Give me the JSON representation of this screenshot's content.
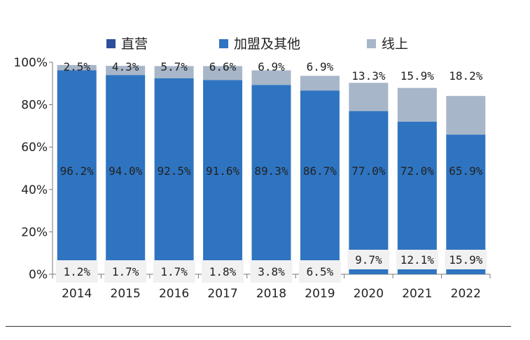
{
  "chart_data": {
    "type": "bar",
    "stacked": true,
    "categories": [
      "2014",
      "2015",
      "2016",
      "2017",
      "2018",
      "2019",
      "2020",
      "2021",
      "2022"
    ],
    "series": [
      {
        "name": "直营",
        "color": "#2d4f9c",
        "values": [
          0,
          0,
          0,
          0,
          0,
          0,
          0,
          0,
          0
        ],
        "labels": [
          "",
          "",
          "",
          "",
          "",
          "",
          "",
          "",
          ""
        ]
      },
      {
        "name": "加盟及其他",
        "color": "#2f74c0",
        "values": [
          96.2,
          94.0,
          92.5,
          91.6,
          89.3,
          86.7,
          77.0,
          72.0,
          65.9
        ],
        "labels": [
          "96.2%",
          "94.0%",
          "92.5%",
          "91.6%",
          "89.3%",
          "86.7%",
          "77.0%",
          "72.0%",
          "65.9%"
        ]
      },
      {
        "name": "线上",
        "color": "#a7b6c9",
        "values": [
          2.5,
          4.3,
          5.7,
          6.6,
          6.9,
          6.9,
          13.3,
          15.9,
          18.2
        ],
        "labels": [
          "2.5%",
          "4.3%",
          "5.7%",
          "6.6%",
          "6.9%",
          "6.9%",
          "13.3%",
          "15.9%",
          "18.2%"
        ]
      }
    ],
    "bottom_labels": [
      "1.2%",
      "1.7%",
      "1.7%",
      "1.8%",
      "3.8%",
      "6.5%",
      "9.7%",
      "12.1%",
      "15.9%"
    ],
    "ylim": [
      0,
      100
    ],
    "yticks": [
      "0%",
      "20%",
      "40%",
      "60%",
      "80%",
      "100%"
    ],
    "legend_position": "top",
    "grid": false
  },
  "footer": {
    "source_text": ""
  }
}
